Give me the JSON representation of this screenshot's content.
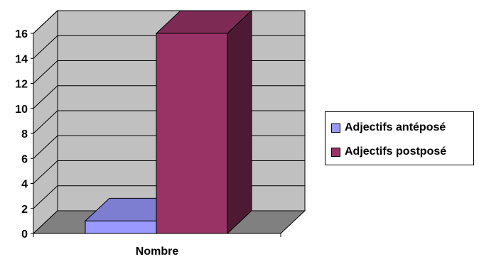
{
  "chart_data": {
    "type": "bar",
    "three_d": true,
    "categories": [
      "Nombre"
    ],
    "series": [
      {
        "name": "Adjectifs antéposé",
        "values": [
          1
        ],
        "color": "#9999ff"
      },
      {
        "name": "Adjectifs postposé",
        "values": [
          16
        ],
        "color": "#993366"
      }
    ],
    "title": "",
    "xlabel": "",
    "ylabel": "",
    "ylim": [
      0,
      16
    ],
    "y_ticks": [
      0,
      2,
      4,
      6,
      8,
      10,
      12,
      14,
      16
    ],
    "grid": true,
    "legend_position": "right",
    "colors": {
      "wall": "#c0c0c0",
      "floor": "#808080",
      "grid": "#000000"
    }
  }
}
